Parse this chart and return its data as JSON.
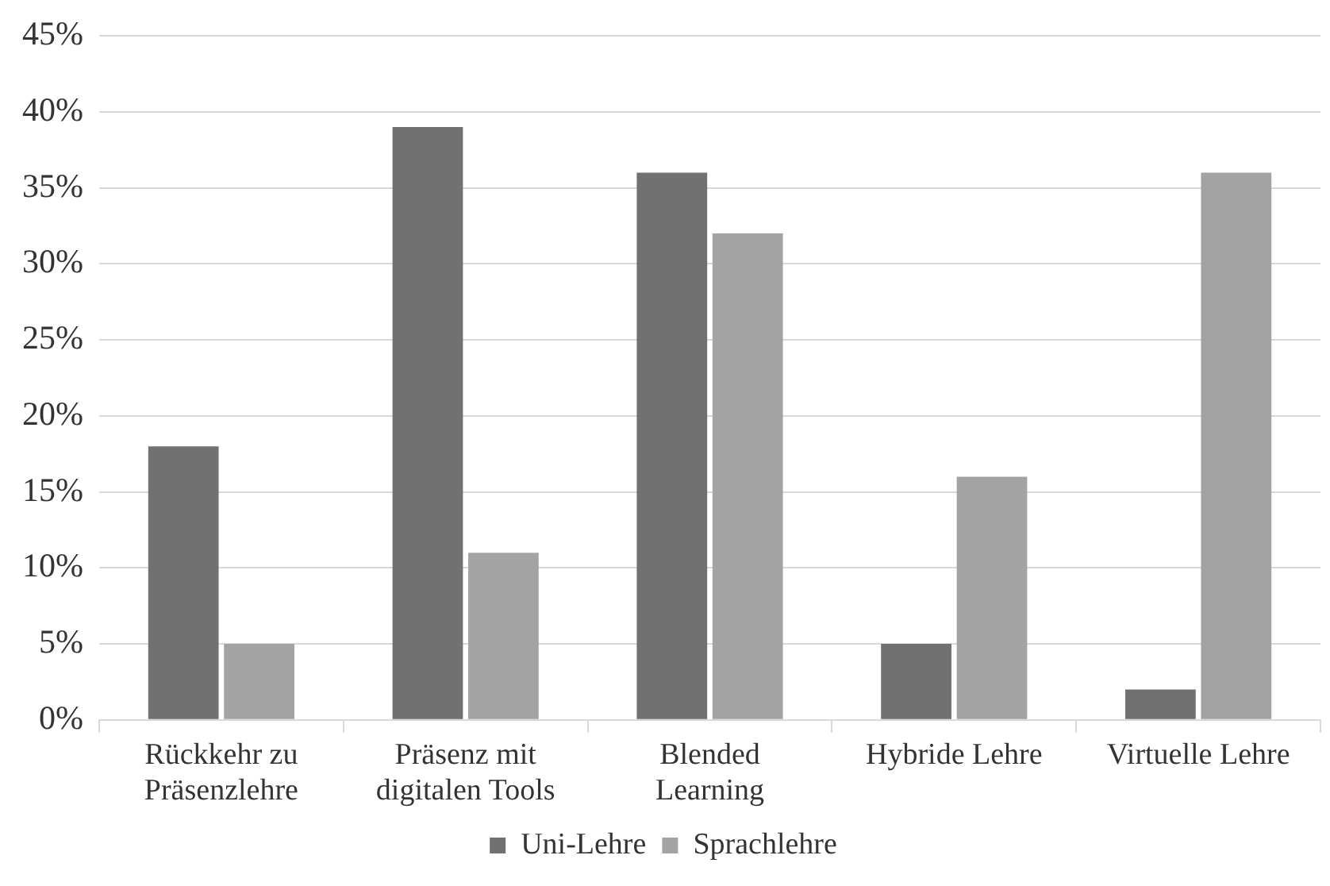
{
  "chart_data": {
    "type": "bar",
    "categories": [
      "Rückkehr zu Präsenzlehre",
      "Präsenz mit digitalen Tools",
      "Blended Learning",
      "Hybride Lehre",
      "Virtuelle Lehre"
    ],
    "series": [
      {
        "name": "Uni-Lehre",
        "color": "#717171",
        "values": [
          18,
          39,
          36,
          5,
          2
        ]
      },
      {
        "name": "Sprachlehre",
        "color": "#a3a3a3",
        "values": [
          5,
          11,
          32,
          16,
          36
        ]
      }
    ],
    "ylim": [
      0,
      45
    ],
    "yticks": [
      {
        "value": 0,
        "label": "0%"
      },
      {
        "value": 5,
        "label": "5%"
      },
      {
        "value": 10,
        "label": "10%"
      },
      {
        "value": 15,
        "label": "15%"
      },
      {
        "value": 20,
        "label": "20%"
      },
      {
        "value": 25,
        "label": "25%"
      },
      {
        "value": 30,
        "label": "30%"
      },
      {
        "value": 35,
        "label": "35%"
      },
      {
        "value": 40,
        "label": "40%"
      },
      {
        "value": 45,
        "label": "45%"
      }
    ],
    "grid": "y",
    "legend": "bottom"
  }
}
